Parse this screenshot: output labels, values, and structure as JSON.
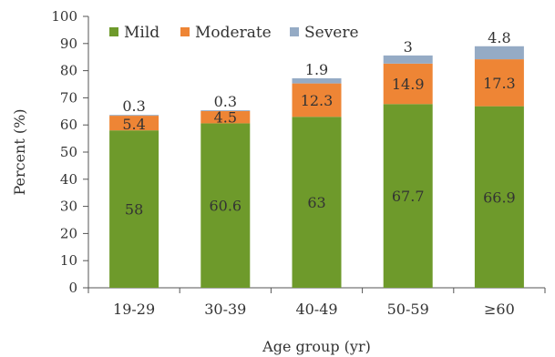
{
  "chart_data": {
    "type": "bar",
    "stacked": true,
    "categories": [
      "19-29",
      "30-39",
      "40-49",
      "50-59",
      "≥60"
    ],
    "series": [
      {
        "name": "Mild",
        "color": "#6e9a2b",
        "values": [
          58,
          60.6,
          63,
          67.7,
          66.9
        ]
      },
      {
        "name": "Moderate",
        "color": "#ee8535",
        "values": [
          5.4,
          4.5,
          12.3,
          14.9,
          17.3
        ]
      },
      {
        "name": "Severe",
        "color": "#95abc5",
        "values": [
          0.3,
          0.3,
          1.9,
          3,
          4.8
        ]
      }
    ],
    "data_labels": {
      "mild": [
        "58",
        "60.6",
        "63",
        "67.7",
        "66.9"
      ],
      "moderate": [
        "5.4",
        "4.5",
        "12.3",
        "14.9",
        "17.3"
      ],
      "severe": [
        "0.3",
        "0.3",
        "1.9",
        "3",
        "4.8"
      ]
    },
    "yticks": [
      "0",
      "10",
      "20",
      "30",
      "40",
      "50",
      "60",
      "70",
      "80",
      "90",
      "100"
    ],
    "ylim": [
      0,
      100
    ],
    "xlabel": "Age group (yr)",
    "ylabel": "Percent (%)",
    "legend_position": "top",
    "grid": false
  }
}
